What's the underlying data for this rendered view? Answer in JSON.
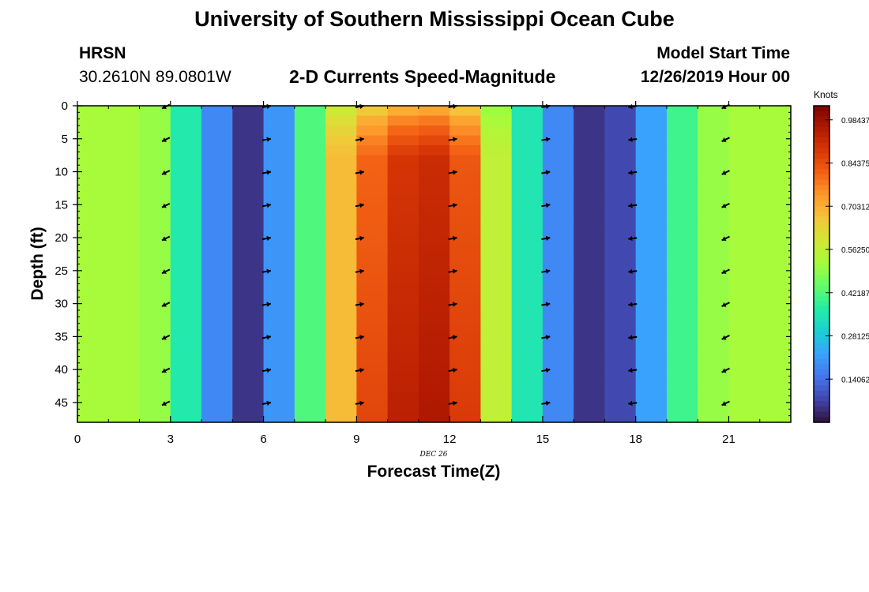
{
  "header": {
    "title": "University of Southern Mississippi Ocean Cube",
    "station": "HRSN",
    "coordinates": "30.2610N  89.0801W",
    "subtitle": "2-D Currents Speed-Magnitude",
    "start_label": "Model Start Time",
    "start_value": "12/26/2019 Hour 00"
  },
  "footer": {
    "title": "University of Southern Mississippi Ocean Cube"
  },
  "chart_data": {
    "type": "heatmap",
    "xlabel": "Forecast Time(Z)",
    "ylabel": "Depth (ft)",
    "x_ticks": [
      0,
      3,
      6,
      9,
      12,
      15,
      18,
      21
    ],
    "y_ticks": [
      0,
      5,
      10,
      15,
      20,
      25,
      30,
      35,
      40,
      45
    ],
    "xlim": [
      0,
      23
    ],
    "ylim": [
      48,
      0
    ],
    "date_label": "DEC 26",
    "colorbar": {
      "title": "Knots",
      "ticks": [
        "0.98437",
        "0.84375",
        "0.70312",
        "0.56250",
        "0.42187",
        "0.28125",
        "0.14062"
      ],
      "range": [
        0,
        1.03
      ],
      "colors": [
        "#30123b",
        "#4145ab",
        "#4675ed",
        "#39a2fc",
        "#1bcfd4",
        "#24eca6",
        "#61fc6c",
        "#a4fc3b",
        "#d1e834",
        "#f3c63a",
        "#fe9b2d",
        "#f36315",
        "#d93806",
        "#b11901",
        "#7a0402"
      ]
    },
    "speed_by_hour": [
      0.52,
      0.52,
      0.5,
      0.36,
      0.18,
      0.05,
      0.2,
      0.42,
      0.68,
      0.8,
      0.88,
      0.9,
      0.82,
      0.56,
      0.35,
      0.18,
      0.05,
      0.08,
      0.22,
      0.4,
      0.5,
      0.52,
      0.52
    ],
    "arrows": [
      {
        "hour": 2.85,
        "direction": "southwest"
      },
      {
        "hour": 6.1,
        "direction": "east"
      },
      {
        "hour": 9.1,
        "direction": "east"
      },
      {
        "hour": 12.1,
        "direction": "east"
      },
      {
        "hour": 15.1,
        "direction": "east"
      },
      {
        "hour": 17.9,
        "direction": "west"
      },
      {
        "hour": 20.9,
        "direction": "southwest"
      }
    ],
    "arrow_depths": [
      0,
      5,
      10,
      15,
      20,
      25,
      30,
      35,
      40,
      45
    ]
  }
}
